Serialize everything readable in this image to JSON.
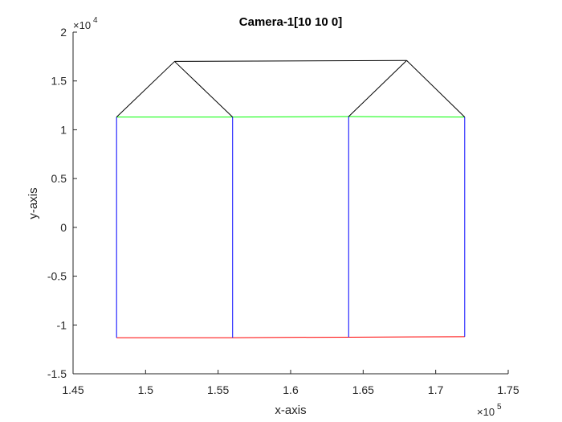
{
  "chart_data": {
    "type": "line",
    "title": "Camera-1[10 10 0]",
    "xlabel": "x-axis",
    "ylabel": "y-axis",
    "xlim": [
      145000,
      175000
    ],
    "ylim": [
      -15000,
      20000
    ],
    "x_ticks": [
      145000,
      150000,
      155000,
      160000,
      165000,
      170000,
      175000
    ],
    "x_tick_labels": [
      "1.45",
      "1.5",
      "1.55",
      "1.6",
      "1.65",
      "1.7",
      "1.75"
    ],
    "y_ticks": [
      -15000,
      -10000,
      -5000,
      0,
      5000,
      10000,
      15000,
      20000
    ],
    "y_tick_labels": [
      "-1.5",
      "-1",
      "-0.5",
      "0",
      "0.5",
      "1",
      "1.5",
      "2"
    ],
    "x_exponent": {
      "base": "×10",
      "power": "5"
    },
    "y_exponent": {
      "base": "×10",
      "power": "4"
    },
    "grid": false,
    "series": [
      {
        "color": "#ff0000",
        "segments": [
          [
            [
              148000,
              -11300
            ],
            [
              156000,
              -11300
            ]
          ],
          [
            [
              156000,
              -11300
            ],
            [
              164000,
              -11250
            ]
          ],
          [
            [
              164000,
              -11250
            ],
            [
              172000,
              -11200
            ]
          ]
        ]
      },
      {
        "color": "#00ff00",
        "segments": [
          [
            [
              148000,
              11300
            ],
            [
              156000,
              11300
            ]
          ],
          [
            [
              156000,
              11300
            ],
            [
              164000,
              11350
            ]
          ],
          [
            [
              164000,
              11350
            ],
            [
              172000,
              11300
            ]
          ]
        ]
      },
      {
        "color": "#0000ff",
        "segments": [
          [
            [
              148000,
              -11300
            ],
            [
              148000,
              11300
            ]
          ],
          [
            [
              156000,
              -11300
            ],
            [
              156000,
              11300
            ]
          ],
          [
            [
              164000,
              -11250
            ],
            [
              164000,
              11350
            ]
          ],
          [
            [
              172000,
              -11200
            ],
            [
              172000,
              11300
            ]
          ]
        ]
      },
      {
        "color": "#000000",
        "segments": [
          [
            [
              148000,
              11300
            ],
            [
              152000,
              17000
            ]
          ],
          [
            [
              152000,
              17000
            ],
            [
              156000,
              11300
            ]
          ],
          [
            [
              152000,
              17000
            ],
            [
              168000,
              17100
            ]
          ],
          [
            [
              164000,
              11350
            ],
            [
              168000,
              17100
            ]
          ],
          [
            [
              168000,
              17100
            ],
            [
              172000,
              11300
            ]
          ]
        ]
      }
    ]
  }
}
